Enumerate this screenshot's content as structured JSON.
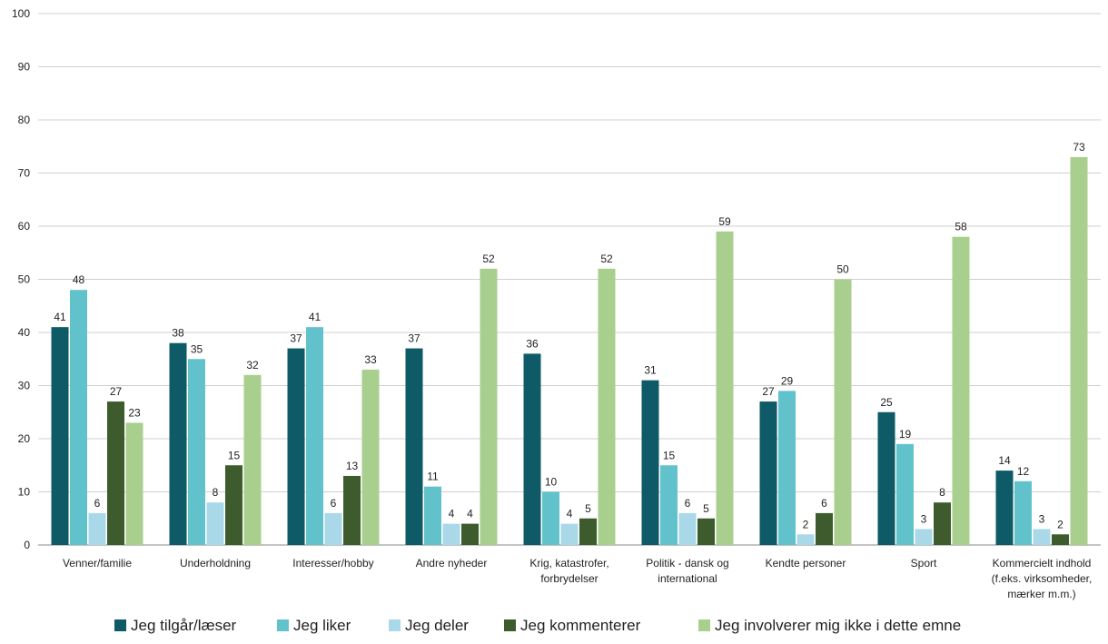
{
  "chart_data": {
    "type": "bar",
    "title": "",
    "xlabel": "",
    "ylabel": "",
    "ylim": [
      0,
      100
    ],
    "yticks": [
      0,
      10,
      20,
      30,
      40,
      50,
      60,
      70,
      80,
      90,
      100
    ],
    "grid": true,
    "legend_position": "bottom",
    "categories": [
      [
        "Venner/familie"
      ],
      [
        "Underholdning"
      ],
      [
        "Interesser/hobby"
      ],
      [
        "Andre nyheder"
      ],
      [
        "Krig, katastrofer,",
        "forbrydelser"
      ],
      [
        "Politik - dansk og",
        "international"
      ],
      [
        "Kendte personer"
      ],
      [
        "Sport"
      ],
      [
        "Kommercielt indhold",
        "(f.eks. virksomheder,",
        "mærker m.m.)"
      ]
    ],
    "series": [
      {
        "name": "Jeg tilgår/læser",
        "color": "#0e5a66",
        "values": [
          41,
          38,
          37,
          37,
          36,
          31,
          27,
          25,
          14
        ],
        "labels": [
          "41",
          "38",
          "37",
          "37",
          "36",
          "31",
          "27",
          "25",
          "14"
        ]
      },
      {
        "name": "Jeg liker",
        "color": "#62c2cc",
        "values": [
          48,
          35,
          41,
          11,
          10,
          15,
          29,
          19,
          12
        ],
        "labels": [
          "48",
          "35",
          "41",
          "11",
          "10",
          "15",
          "29",
          "19",
          "12"
        ]
      },
      {
        "name": "Jeg deler",
        "color": "#a9d8e8",
        "values": [
          6,
          8,
          6,
          4,
          4,
          6,
          2,
          3,
          3
        ],
        "labels": [
          "6",
          "8",
          "6",
          "4",
          "4",
          "6",
          "2",
          "3",
          "3"
        ]
      },
      {
        "name": "Jeg kommenterer",
        "color": "#3d5b2c",
        "values": [
          27,
          15,
          13,
          4,
          5,
          5,
          6,
          8,
          2
        ],
        "labels": [
          "27",
          "15",
          "13",
          "4",
          "5",
          "5",
          "6",
          "8",
          "2"
        ]
      },
      {
        "name": "Jeg involverer mig ikke i dette emne",
        "color": "#a9cf8e",
        "values": [
          23,
          32,
          33,
          52,
          52,
          59,
          50,
          58,
          73
        ],
        "labels": [
          "23",
          "32",
          "33",
          "52",
          "52",
          "59",
          "50",
          "58",
          "73"
        ]
      }
    ]
  }
}
